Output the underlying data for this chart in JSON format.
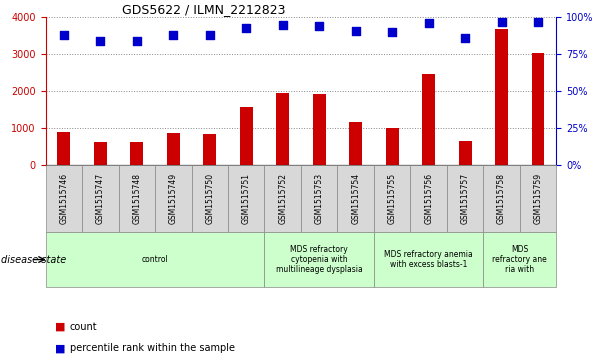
{
  "title": "GDS5622 / ILMN_2212823",
  "samples": [
    "GSM1515746",
    "GSM1515747",
    "GSM1515748",
    "GSM1515749",
    "GSM1515750",
    "GSM1515751",
    "GSM1515752",
    "GSM1515753",
    "GSM1515754",
    "GSM1515755",
    "GSM1515756",
    "GSM1515757",
    "GSM1515758",
    "GSM1515759"
  ],
  "counts": [
    900,
    630,
    640,
    880,
    840,
    1580,
    1960,
    1940,
    1170,
    1010,
    2470,
    660,
    3700,
    3050
  ],
  "percentiles": [
    88,
    84,
    84,
    88,
    88,
    93,
    95,
    94,
    91,
    90,
    96,
    86,
    97,
    97
  ],
  "bar_color": "#cc0000",
  "dot_color": "#0000cc",
  "ylim_left": [
    0,
    4000
  ],
  "ylim_right": [
    0,
    100
  ],
  "yticks_left": [
    0,
    1000,
    2000,
    3000,
    4000
  ],
  "yticks_right": [
    0,
    25,
    50,
    75,
    100
  ],
  "groups": [
    {
      "label": "control",
      "start": 0,
      "end": 6
    },
    {
      "label": "MDS refractory\ncytopenia with\nmultilineage dysplasia",
      "start": 6,
      "end": 9
    },
    {
      "label": "MDS refractory anemia\nwith excess blasts-1",
      "start": 9,
      "end": 12
    },
    {
      "label": "MDS\nrefractory ane\nria with",
      "start": 12,
      "end": 14
    }
  ],
  "panel_color": "#ccffcc",
  "gray_box_color": "#d8d8d8",
  "border_color": "#888888",
  "grid_color": "#888888",
  "left_color": "#cc0000",
  "right_color": "#0000cc",
  "bar_width": 0.35,
  "dot_size": 30,
  "dot_marker": "s"
}
